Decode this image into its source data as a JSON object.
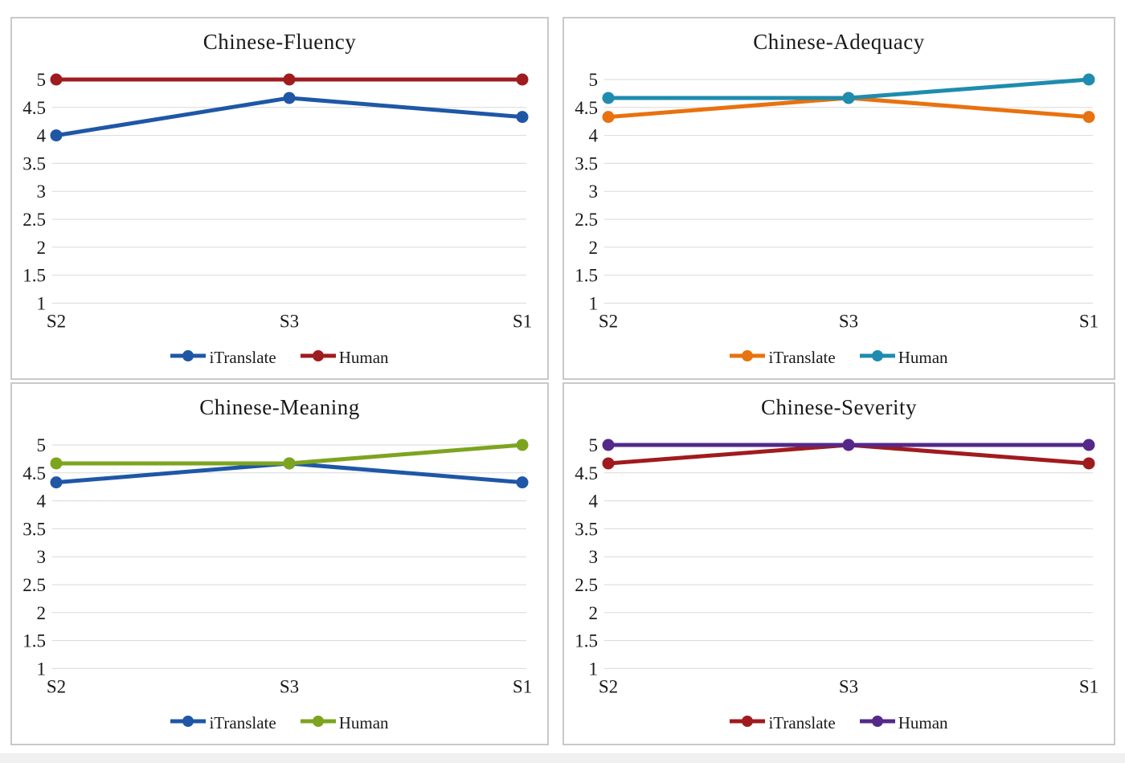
{
  "page": {
    "background_color": "#ffffff",
    "panel_border_color": "#c9c9c9",
    "grid_color": "#d9d9d9",
    "text_color": "#1a1a1a"
  },
  "chart_data": [
    {
      "type": "line",
      "title": "Chinese-Fluency",
      "categories": [
        "S2",
        "S3",
        "S1"
      ],
      "series": [
        {
          "name": "iTranslate",
          "color": "#1F57A6",
          "values": [
            4,
            4.67,
            4.33
          ]
        },
        {
          "name": "Human",
          "color": "#A01B1E",
          "values": [
            5,
            5,
            5
          ]
        }
      ],
      "ylim": [
        1,
        5
      ],
      "ytick_step": 0.5,
      "yticks": [
        5,
        4.5,
        4,
        3.5,
        3,
        2.5,
        2,
        1.5,
        1
      ],
      "xlabel": "",
      "ylabel": "",
      "grid": true,
      "legend_position": "bottom"
    },
    {
      "type": "line",
      "title": "Chinese-Adequacy",
      "categories": [
        "S2",
        "S3",
        "S1"
      ],
      "series": [
        {
          "name": "iTranslate",
          "color": "#E8720F",
          "values": [
            4.33,
            4.67,
            4.33
          ]
        },
        {
          "name": "Human",
          "color": "#1E8CAE",
          "values": [
            4.67,
            4.67,
            5
          ]
        }
      ],
      "ylim": [
        1,
        5
      ],
      "ytick_step": 0.5,
      "yticks": [
        5,
        4.5,
        4,
        3.5,
        3,
        2.5,
        2,
        1.5,
        1
      ],
      "xlabel": "",
      "ylabel": "",
      "grid": true,
      "legend_position": "bottom"
    },
    {
      "type": "line",
      "title": "Chinese-Meaning",
      "categories": [
        "S2",
        "S3",
        "S1"
      ],
      "series": [
        {
          "name": "iTranslate",
          "color": "#1F57A6",
          "values": [
            4.33,
            4.67,
            4.33
          ]
        },
        {
          "name": "Human",
          "color": "#7DA41F",
          "values": [
            4.67,
            4.67,
            5
          ]
        }
      ],
      "ylim": [
        1,
        5
      ],
      "ytick_step": 0.5,
      "yticks": [
        5,
        4.5,
        4,
        3.5,
        3,
        2.5,
        2,
        1.5,
        1
      ],
      "xlabel": "",
      "ylabel": "",
      "grid": true,
      "legend_position": "bottom"
    },
    {
      "type": "line",
      "title": "Chinese-Severity",
      "categories": [
        "S2",
        "S3",
        "S1"
      ],
      "series": [
        {
          "name": "iTranslate",
          "color": "#A01B1E",
          "values": [
            4.67,
            5,
            4.67
          ]
        },
        {
          "name": "Human",
          "color": "#542989",
          "values": [
            5,
            5,
            5
          ]
        }
      ],
      "ylim": [
        1,
        5
      ],
      "ytick_step": 0.5,
      "yticks": [
        5,
        4.5,
        4,
        3.5,
        3,
        2.5,
        2,
        1.5,
        1
      ],
      "xlabel": "",
      "ylabel": "",
      "grid": true,
      "legend_position": "bottom"
    }
  ]
}
